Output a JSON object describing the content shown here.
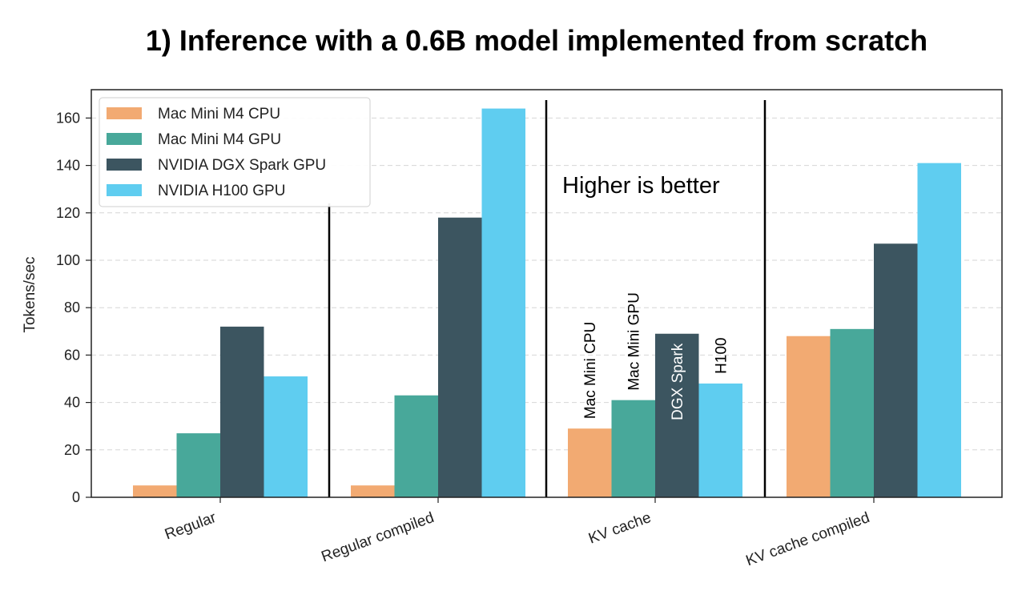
{
  "chart_data": {
    "type": "bar",
    "title": "1) Inference with a 0.6B model implemented from scratch",
    "xlabel": "",
    "ylabel": "Tokens/sec",
    "ylim": [
      0,
      170
    ],
    "yticks": [
      0,
      20,
      40,
      60,
      80,
      100,
      120,
      140,
      160
    ],
    "grid": true,
    "legend_position": "top-left",
    "categories": [
      "Regular",
      "Regular compiled",
      "KV cache",
      "KV cache compiled"
    ],
    "series": [
      {
        "name": "Mac Mini M4 CPU",
        "color": "#f2aa72",
        "values": [
          5,
          5,
          29,
          68
        ]
      },
      {
        "name": "Mac Mini M4 GPU",
        "color": "#48a89a",
        "values": [
          27,
          43,
          41,
          71
        ]
      },
      {
        "name": "NVIDIA DGX Spark GPU",
        "color": "#3c5560",
        "values": [
          72,
          118,
          69,
          107
        ]
      },
      {
        "name": "NVIDIA H100 GPU",
        "color": "#5fcdf0",
        "values": [
          51,
          164,
          48,
          141
        ]
      }
    ],
    "annotations": {
      "note": "Higher is better",
      "bar_labels": [
        "Mac Mini CPU",
        "Mac Mini GPU",
        "DGX Spark",
        "H100"
      ]
    }
  }
}
